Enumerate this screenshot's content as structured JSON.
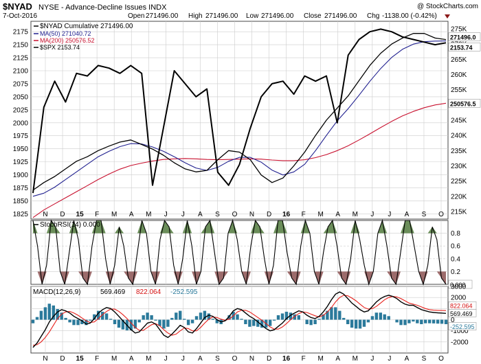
{
  "header": {
    "symbol": "$NYAD",
    "description": "NYSE - Advance-Decline Issues INDX",
    "copyright": "@ StockCharts.com",
    "date": "7-Oct-2016",
    "open_label": "Open",
    "open": "271496.00",
    "high_label": "High",
    "high": "271496.00",
    "low_label": "Low",
    "low": "271496.00",
    "close_label": "Close",
    "close": "271496.00",
    "chg_label": "Chg",
    "chg": "-1138.00 (-0.42%)"
  },
  "legend": {
    "nyad": "$NYAD Cumulative 271496.00",
    "ma50": "MA(50) 271040.72",
    "ma200": "MA(200) 250576.52",
    "spx": "$SPX 2153.74"
  },
  "colors": {
    "price": "#000000",
    "ma50": "#1f1f8f",
    "ma200": "#c8102e",
    "spx": "#000000",
    "stoch_fill_top": "#6b8e5a",
    "stoch_fill_bottom": "#9c6b6b",
    "macd_line": "#000000",
    "macd_signal": "#e8201b",
    "histogram": "#2b7a9b",
    "grid": "#cccccc",
    "signal_label": "#d41111",
    "hist_label": "#2b7a9b"
  },
  "chart_data": [
    {
      "type": "line",
      "panel": "price",
      "title": "$NYAD NYSE - Advance-Decline Issues INDX",
      "left_axis": {
        "label": "$SPX",
        "ticks": [
          1825,
          1850,
          1875,
          1900,
          1925,
          1950,
          1975,
          2000,
          2025,
          2050,
          2075,
          2100,
          2125,
          2150,
          2175
        ],
        "range": [
          1815,
          2195
        ]
      },
      "right_axis": {
        "label": "$NYAD",
        "ticks": [
          "215K",
          "220K",
          "225K",
          "230K",
          "235K",
          "240K",
          "245K",
          "250K",
          "255K",
          "260K",
          "265K",
          "270K",
          "275K"
        ],
        "values": [
          215000,
          220000,
          225000,
          230000,
          235000,
          240000,
          245000,
          250000,
          255000,
          260000,
          265000,
          270000,
          275000
        ],
        "range": [
          212500,
          277500
        ]
      },
      "right_value_labels": {
        "nyad": "271496.0",
        "spx": "2153.74",
        "ma200": "250576.5"
      },
      "x_labels": [
        "N",
        "D",
        "15",
        "F",
        "M",
        "A",
        "M",
        "J",
        "J",
        "A",
        "S",
        "O",
        "N",
        "D",
        "16",
        "F",
        "M",
        "A",
        "M",
        "J",
        "J",
        "A",
        "S",
        "O"
      ],
      "series": [
        {
          "name": "$NYAD Cumulative",
          "axis": "right",
          "values": [
            222000,
            224500,
            226500,
            229000,
            231500,
            233000,
            235000,
            236500,
            237800,
            238500,
            237000,
            235500,
            233500,
            231000,
            229000,
            228000,
            228500,
            232000,
            235000,
            234500,
            232000,
            227000,
            224500,
            226000,
            230000,
            234500,
            240000,
            245000,
            249000,
            253000,
            258000,
            263000,
            267000,
            270000,
            272000,
            273500,
            273500,
            272000,
            271496
          ]
        },
        {
          "name": "MA(50)",
          "axis": "right",
          "values": [
            220000,
            221000,
            223000,
            225500,
            228000,
            230500,
            233000,
            234800,
            236300,
            237300,
            237200,
            236200,
            234800,
            233000,
            231000,
            229300,
            228500,
            229500,
            231500,
            232800,
            232800,
            231200,
            228600,
            227000,
            228000,
            230500,
            235000,
            240000,
            244800,
            248800,
            253200,
            257800,
            262000,
            265600,
            268300,
            270000,
            270800,
            271000,
            271041
          ]
        },
        {
          "name": "MA(200)",
          "axis": "right",
          "values": [
            213000,
            215500,
            217500,
            219500,
            221500,
            223500,
            225500,
            227300,
            228900,
            230100,
            230900,
            231600,
            232100,
            232300,
            232400,
            232300,
            232100,
            232000,
            232100,
            232200,
            232300,
            232200,
            231900,
            231700,
            231700,
            232000,
            232700,
            233700,
            235000,
            236600,
            238500,
            240500,
            242600,
            244600,
            246400,
            247900,
            249100,
            250000,
            250577
          ]
        },
        {
          "name": "$SPX",
          "axis": "left",
          "values": [
            1865,
            2030,
            2080,
            2040,
            2095,
            2090,
            2110,
            2105,
            2095,
            2110,
            2095,
            1880,
            1990,
            2100,
            2075,
            2050,
            2065,
            1905,
            1880,
            1920,
            1990,
            2050,
            2075,
            2080,
            2055,
            2090,
            2080,
            2090,
            2000,
            2130,
            2160,
            2175,
            2180,
            2175,
            2165,
            2160,
            2155,
            2150,
            2153.74
          ]
        }
      ]
    },
    {
      "type": "line",
      "panel": "stochrsi",
      "title": "StochRSI(14) 0.000",
      "ylim": [
        0,
        1
      ],
      "y_ticks": [
        "0.2",
        "0.4",
        "0.6",
        "0.8"
      ],
      "y_tick_values": [
        0.2,
        0.4,
        0.6,
        0.8
      ],
      "value_label": "0.000",
      "thresholds": [
        0.2,
        0.8
      ],
      "series": [
        {
          "name": "StochRSI(14)",
          "values": [
            1.0,
            0.6,
            0.0,
            0.3,
            1.0,
            0.9,
            0.2,
            0.0,
            0.5,
            1.0,
            0.7,
            0.1,
            0.0,
            0.6,
            1.0,
            1.0,
            0.4,
            0.0,
            0.3,
            0.9,
            0.6,
            0.1,
            0.0,
            0.5,
            1.0,
            0.8,
            0.2,
            0.0,
            0.7,
            1.0,
            0.9,
            0.3,
            0.0,
            0.4,
            1.0,
            0.6,
            0.0,
            0.2,
            0.9,
            1.0,
            0.5,
            0.0,
            0.1,
            0.8,
            1.0,
            0.7,
            0.2,
            0.0,
            0.6,
            1.0,
            0.9,
            0.4,
            0.0,
            0.3,
            1.0,
            1.0,
            0.5,
            0.1,
            0.0,
            0.6,
            1.0,
            0.8,
            0.2,
            0.0,
            0.5,
            0.9,
            1.0,
            0.6,
            0.1,
            0.0,
            0.4,
            1.0,
            0.7,
            0.3,
            0.0,
            0.2,
            0.8,
            1.0,
            0.6,
            0.1,
            0.0,
            0.5,
            1.0,
            1.0,
            0.6,
            0.2,
            0.0,
            0.3,
            0.9,
            0.7,
            0.1,
            0.0
          ]
        }
      ]
    },
    {
      "type": "line",
      "panel": "macd",
      "title": "MACD(12,26,9)",
      "macd_value": "569.469",
      "signal_value": "822.064",
      "hist_value": "-252.595",
      "ylim": [
        -3000,
        3000
      ],
      "y_ticks": [
        "3000",
        "2000",
        "1000",
        "0",
        "-1000",
        "-2000"
      ],
      "y_tick_values": [
        3000,
        2000,
        1000,
        0,
        -1000,
        -2000
      ],
      "value_labels": {
        "macd": "569.469",
        "signal": "822.064",
        "hist": "-252.595"
      },
      "series": [
        {
          "name": "MACD",
          "values": [
            -2500,
            -2100,
            -1500,
            -900,
            -200,
            300,
            700,
            900,
            800,
            600,
            300,
            100,
            -100,
            -400,
            -300,
            100,
            600,
            900,
            1100,
            1000,
            700,
            300,
            -100,
            -500,
            -900,
            -1200,
            -1100,
            -700,
            -300,
            -200,
            -400,
            -900,
            -1400,
            -1600,
            -1300,
            -900,
            -500,
            -700,
            -1100,
            -1200,
            -800,
            -300,
            200,
            400,
            300,
            0,
            -200,
            -100,
            300,
            800,
            1000,
            900,
            600,
            300,
            100,
            -200,
            -500,
            -800,
            -1000,
            -900,
            -600,
            -300,
            100,
            400,
            600,
            800,
            700,
            400,
            200,
            100,
            300,
            700,
            1200,
            1800,
            2300,
            2500,
            2300,
            1900,
            1500,
            1200,
            900,
            700,
            800,
            1200,
            1600,
            1900,
            2100,
            2200,
            2100,
            1900,
            1600,
            1400,
            1300,
            1300,
            1100,
            900,
            800,
            700,
            650,
            620,
            600,
            570
          ]
        },
        {
          "name": "Signal",
          "values": [
            -2300,
            -2250,
            -2000,
            -1600,
            -1100,
            -500,
            100,
            500,
            700,
            750,
            600,
            400,
            150,
            -100,
            -250,
            -200,
            100,
            450,
            750,
            950,
            950,
            750,
            450,
            100,
            -300,
            -700,
            -950,
            -950,
            -700,
            -450,
            -350,
            -550,
            -900,
            -1200,
            -1400,
            -1300,
            -1000,
            -750,
            -800,
            -1000,
            -1000,
            -700,
            -300,
            50,
            250,
            200,
            50,
            -50,
            50,
            350,
            700,
            850,
            850,
            700,
            450,
            200,
            -50,
            -350,
            -650,
            -850,
            -850,
            -650,
            -350,
            0,
            300,
            550,
            700,
            650,
            500,
            350,
            250,
            400,
            700,
            1100,
            1600,
            2000,
            2200,
            2150,
            1950,
            1700,
            1400,
            1100,
            950,
            1000,
            1200,
            1500,
            1800,
            2000,
            2100,
            2050,
            1900,
            1700,
            1500,
            1400,
            1300,
            1150,
            1000,
            900,
            860,
            840,
            830,
            822
          ]
        }
      ]
    }
  ],
  "bottom_x_labels": [
    "N",
    "D",
    "15",
    "F",
    "M",
    "A",
    "M",
    "J",
    "J",
    "A",
    "S",
    "O",
    "N",
    "D",
    "16",
    "F",
    "M",
    "A",
    "M",
    "J",
    "J",
    "A",
    "S",
    "O"
  ]
}
